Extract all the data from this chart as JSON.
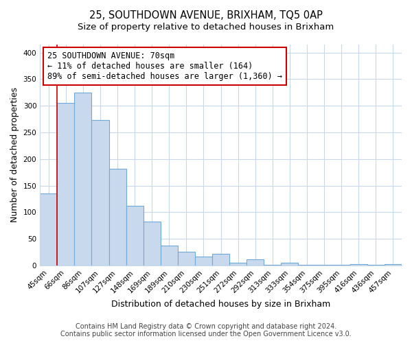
{
  "title": "25, SOUTHDOWN AVENUE, BRIXHAM, TQ5 0AP",
  "subtitle": "Size of property relative to detached houses in Brixham",
  "xlabel": "Distribution of detached houses by size in Brixham",
  "ylabel": "Number of detached properties",
  "bar_labels": [
    "45sqm",
    "66sqm",
    "86sqm",
    "107sqm",
    "127sqm",
    "148sqm",
    "169sqm",
    "189sqm",
    "210sqm",
    "230sqm",
    "251sqm",
    "272sqm",
    "292sqm",
    "313sqm",
    "333sqm",
    "354sqm",
    "375sqm",
    "395sqm",
    "416sqm",
    "436sqm",
    "457sqm"
  ],
  "bar_values": [
    135,
    305,
    325,
    273,
    182,
    112,
    83,
    37,
    26,
    17,
    22,
    5,
    11,
    1,
    5,
    1,
    1,
    1,
    2,
    1,
    2
  ],
  "bar_color": "#c9d9ed",
  "bar_edge_color": "#6ea8d8",
  "highlight_line_color": "#cc0000",
  "annotation_title": "25 SOUTHDOWN AVENUE: 70sqm",
  "annotation_line1": "← 11% of detached houses are smaller (164)",
  "annotation_line2": "89% of semi-detached houses are larger (1,360) →",
  "annotation_box_color": "#ffffff",
  "annotation_box_edge": "#cc0000",
  "ylim": [
    0,
    415
  ],
  "yticks": [
    0,
    50,
    100,
    150,
    200,
    250,
    300,
    350,
    400
  ],
  "footer_line1": "Contains HM Land Registry data © Crown copyright and database right 2024.",
  "footer_line2": "Contains public sector information licensed under the Open Government Licence v3.0.",
  "bg_color": "#ffffff",
  "plot_bg_color": "#ffffff",
  "grid_color": "#c8d8e8",
  "title_fontsize": 10.5,
  "subtitle_fontsize": 9.5,
  "axis_label_fontsize": 9,
  "tick_fontsize": 7.5,
  "annotation_fontsize": 8.5,
  "footer_fontsize": 7
}
